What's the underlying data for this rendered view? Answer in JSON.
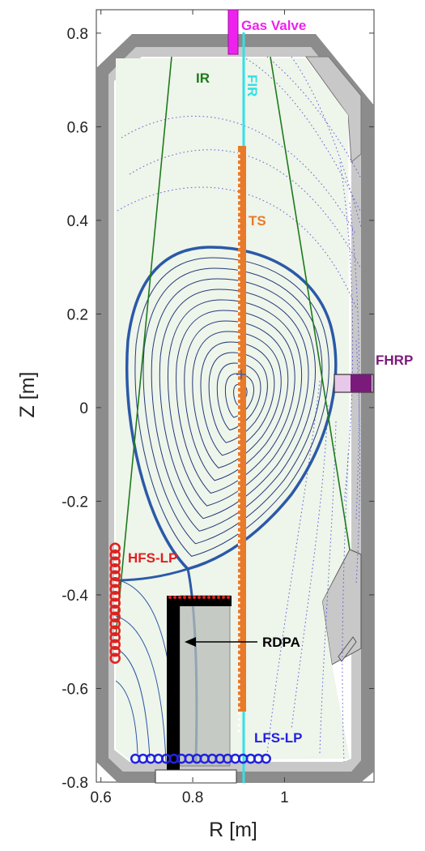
{
  "colors": {
    "wall_outer": "#8c8c8c",
    "wall_inner": "#c8c8c8",
    "plasma_fill": "#eef5ea",
    "separatrix": "#2b59a8",
    "flux_surface": "#23397a",
    "open_field": "#4a4ad6",
    "ir": "#1e7a1e",
    "fir": "#33e0e6",
    "ts": "#e87a2a",
    "gas_valve": "#ee22ee",
    "fhrp": "#7a1a7a",
    "hfs_lp": "#e02020",
    "lfs_lp": "#2222dd",
    "rdpa": "#000000",
    "rdpa_box": "#b8bdb8"
  },
  "chart_data": {
    "type": "diagram",
    "xlabel": "R [m]",
    "ylabel": "Z [m]",
    "xlim": [
      0.59,
      1.195
    ],
    "ylim": [
      -0.8,
      0.85
    ],
    "x_ticks": [
      0.6,
      0.8,
      1.0
    ],
    "x_tick_labels": [
      "0.6",
      "0.8",
      "1"
    ],
    "y_ticks": [
      0.8,
      0.6,
      0.4,
      0.2,
      0,
      -0.2,
      -0.4,
      -0.6,
      -0.8
    ],
    "y_tick_labels": [
      "0.8",
      "0.6",
      "0.4",
      "0.2",
      "0",
      "-0.2",
      "-0.4",
      "-0.6",
      "-0.8"
    ],
    "magnetic_axis": {
      "r": 0.905,
      "z": 0.03
    },
    "x_point": {
      "r": 0.775,
      "z": -0.395
    },
    "labels": [
      {
        "key": "gas_valve",
        "text": "Gas Valve"
      },
      {
        "key": "ir",
        "text": "IR"
      },
      {
        "key": "fir",
        "text": "FIR"
      },
      {
        "key": "ts",
        "text": "TS"
      },
      {
        "key": "fhrp",
        "text": "FHRP"
      },
      {
        "key": "hfs_lp",
        "text": "HFS-LP"
      },
      {
        "key": "rdpa",
        "text": "RDPA"
      },
      {
        "key": "lfs_lp",
        "text": "LFS-LP"
      }
    ],
    "diagnostics": {
      "fir_r": 0.905,
      "ts": {
        "r": 0.9,
        "z_top": 0.55,
        "z_bottom": -0.7
      },
      "hfs_lp": {
        "r": 0.631,
        "z_top": -0.3,
        "z_bottom": -0.545
      },
      "lfs_lp": {
        "z": -0.75,
        "r_left": 0.675,
        "r_right": 0.97
      },
      "fhrp": {
        "z": 0.0,
        "r_left": 1.104,
        "r_right": 1.18
      },
      "gas_valve": {
        "r": 0.877,
        "z_bottom": 0.77,
        "z_top": 0.855
      }
    }
  }
}
